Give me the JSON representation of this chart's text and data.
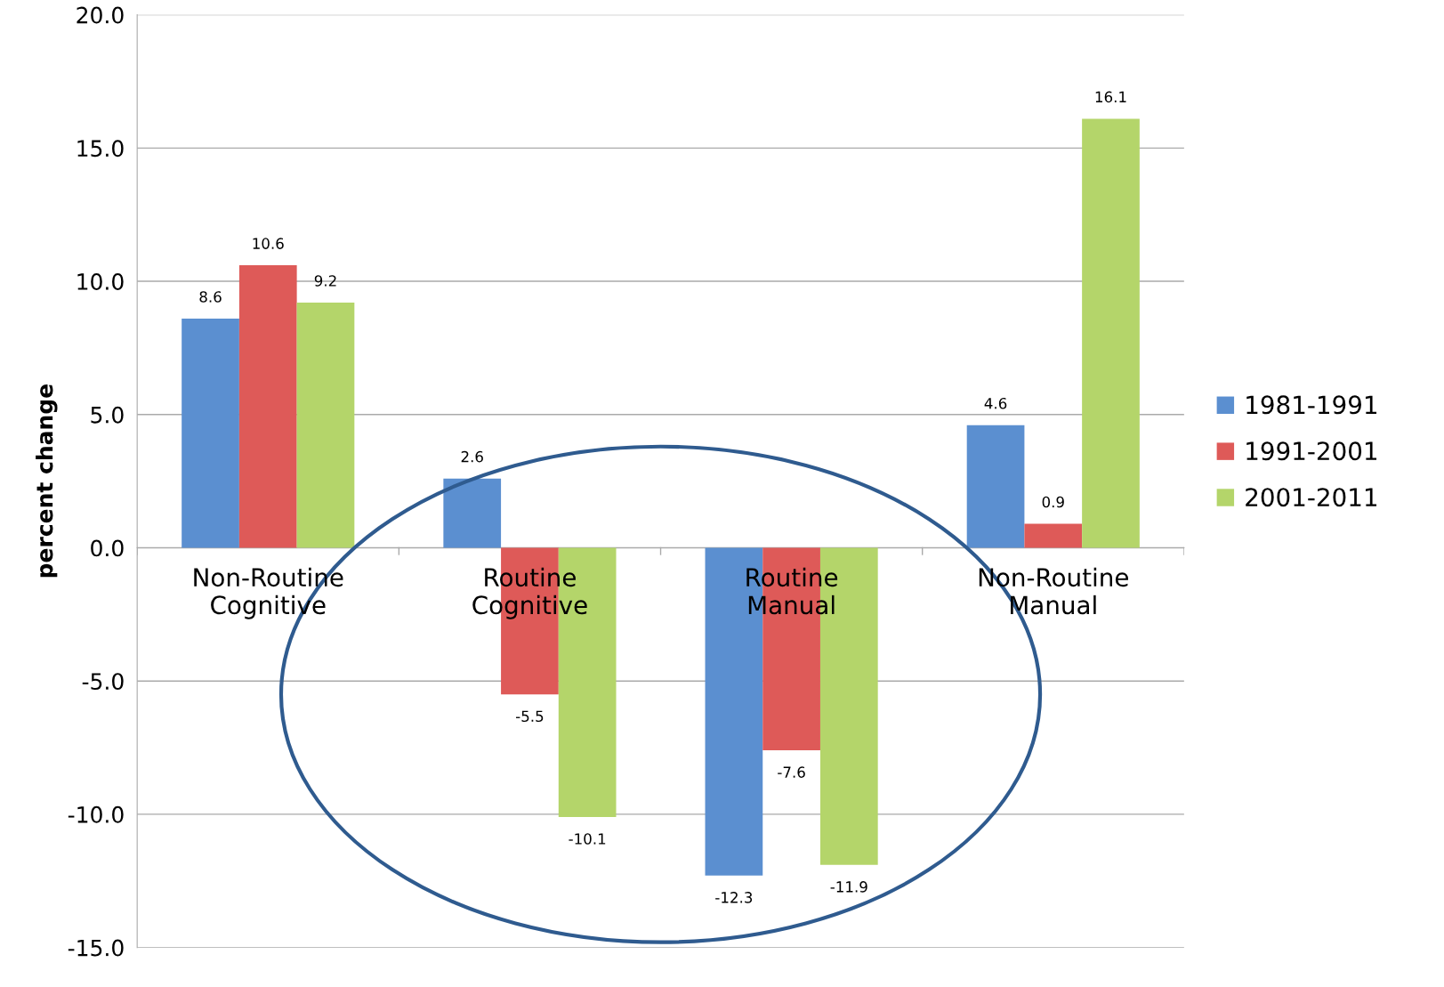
{
  "chart_data": {
    "type": "bar",
    "ylabel": "percent change",
    "categories": [
      "Non-Routine\nCognitive",
      "Routine\nCognitive",
      "Routine\nManual",
      "Non-Routine\nManual"
    ],
    "series": [
      {
        "name": "1981-1991",
        "color": "#5b8fd0",
        "values": [
          8.6,
          2.6,
          -12.3,
          4.6
        ]
      },
      {
        "name": "1991-2001",
        "color": "#de5a58",
        "values": [
          10.6,
          -5.5,
          -7.6,
          0.9
        ]
      },
      {
        "name": "2001-2011",
        "color": "#b4d56a",
        "values": [
          9.2,
          -10.1,
          -11.9,
          16.1
        ]
      }
    ],
    "ylim": [
      -15,
      20
    ],
    "yticks": [
      {
        "value": -15,
        "label": "-15.0"
      },
      {
        "value": -10,
        "label": "-10.0"
      },
      {
        "value": -5,
        "label": "-5.0"
      },
      {
        "value": 0,
        "label": "0.0"
      },
      {
        "value": 5,
        "label": "5.0"
      },
      {
        "value": 10,
        "label": "10.0"
      },
      {
        "value": 15,
        "label": "15.0"
      },
      {
        "value": 20,
        "label": "20.0"
      }
    ],
    "grid": "y",
    "legend": "right",
    "data_labels": true
  }
}
